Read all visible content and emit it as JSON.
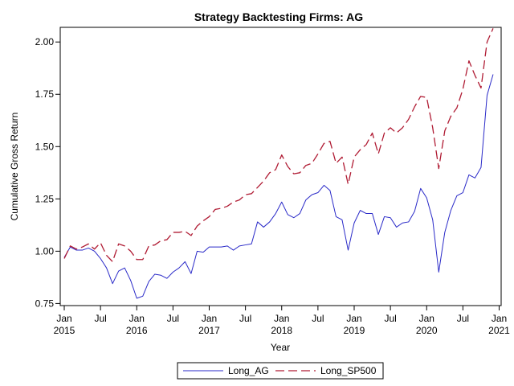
{
  "chart_data": {
    "type": "line",
    "title": "Strategy Backtesting  Firms: AG",
    "xlabel": "Year",
    "ylabel": "Cumulative Gross Return",
    "ylim": [
      0.74,
      2.07
    ],
    "y_ticks": [
      "0.75",
      "1.00",
      "1.25",
      "1.50",
      "1.75",
      "2.00"
    ],
    "x_ticks": [
      {
        "month": "Jan",
        "year": "2015"
      },
      {
        "month": "Jul",
        "year": ""
      },
      {
        "month": "Jan",
        "year": "2016"
      },
      {
        "month": "Jul",
        "year": ""
      },
      {
        "month": "Jan",
        "year": "2017"
      },
      {
        "month": "Jul",
        "year": ""
      },
      {
        "month": "Jan",
        "year": "2018"
      },
      {
        "month": "Jul",
        "year": ""
      },
      {
        "month": "Jan",
        "year": "2019"
      },
      {
        "month": "Jul",
        "year": ""
      },
      {
        "month": "Jan",
        "year": "2020"
      },
      {
        "month": "Jul",
        "year": ""
      },
      {
        "month": "Jan",
        "year": "2021"
      }
    ],
    "legend_position": "bottom",
    "series": [
      {
        "name": "Long_AG",
        "color": "#2a2ac8",
        "dash": "solid",
        "values": [
          0.97,
          1.02,
          1.005,
          1.005,
          1.015,
          1.0,
          0.965,
          0.92,
          0.845,
          0.905,
          0.92,
          0.86,
          0.775,
          0.785,
          0.855,
          0.89,
          0.885,
          0.87,
          0.9,
          0.92,
          0.95,
          0.893,
          1.0,
          0.995,
          1.02,
          1.02,
          1.02,
          1.025,
          1.005,
          1.025,
          1.03,
          1.035,
          1.14,
          1.115,
          1.14,
          1.18,
          1.235,
          1.175,
          1.16,
          1.18,
          1.245,
          1.27,
          1.28,
          1.315,
          1.29,
          1.165,
          1.15,
          1.005,
          1.135,
          1.195,
          1.18,
          1.18,
          1.08,
          1.165,
          1.16,
          1.115,
          1.135,
          1.14,
          1.19,
          1.3,
          1.255,
          1.15,
          0.9,
          1.09,
          1.195,
          1.265,
          1.28,
          1.365,
          1.35,
          1.4,
          1.745,
          1.845
        ]
      },
      {
        "name": "Long_SP500",
        "color": "#b01c34",
        "dash": "dashed",
        "values": [
          0.965,
          1.025,
          1.01,
          1.02,
          1.035,
          1.01,
          1.04,
          0.98,
          0.95,
          1.035,
          1.025,
          1.0,
          0.96,
          0.96,
          1.025,
          1.03,
          1.05,
          1.055,
          1.09,
          1.09,
          1.095,
          1.075,
          1.12,
          1.145,
          1.165,
          1.2,
          1.205,
          1.215,
          1.235,
          1.245,
          1.27,
          1.275,
          1.305,
          1.335,
          1.375,
          1.39,
          1.46,
          1.405,
          1.37,
          1.375,
          1.41,
          1.42,
          1.465,
          1.515,
          1.525,
          1.42,
          1.45,
          1.32,
          1.45,
          1.485,
          1.51,
          1.565,
          1.465,
          1.565,
          1.59,
          1.565,
          1.59,
          1.63,
          1.69,
          1.74,
          1.735,
          1.59,
          1.395,
          1.575,
          1.645,
          1.685,
          1.775,
          1.91,
          1.84,
          1.78,
          2.0,
          2.065
        ]
      }
    ]
  }
}
